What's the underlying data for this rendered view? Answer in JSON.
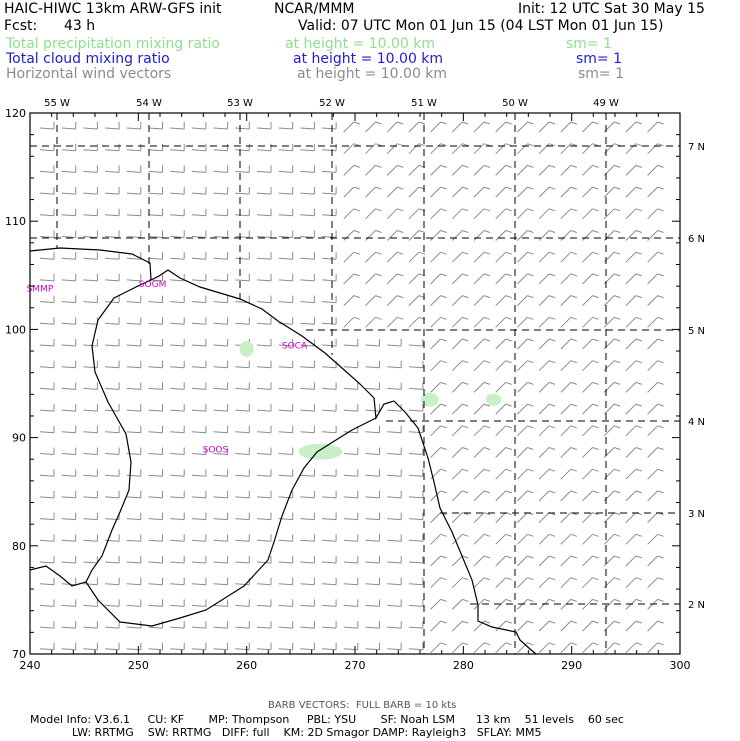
{
  "header": {
    "model_title": "HAIC-HIWC 13km ARW-GFS init",
    "org": "NCAR/MMM",
    "init": "Init: 12 UTC Sat 30 May 15",
    "fcst_label": "Fcst:",
    "fcst_value": "43 h",
    "valid": "Valid: 07 UTC Mon 01 Jun 15 (04 LST Mon 01 Jun 15)",
    "fields": [
      {
        "name": "Total precipitation mixing ratio",
        "height": "at height = 10.00 km",
        "sm": "sm= 1",
        "color": "#8ee08e"
      },
      {
        "name": "Total cloud mixing ratio",
        "height": "at height = 10.00 km",
        "sm": "sm= 1",
        "color": "#1e1ecc"
      },
      {
        "name": "Horizontal wind vectors",
        "height": "at height = 10.00 km",
        "sm": "sm= 1",
        "color": "#8c8c8c"
      }
    ]
  },
  "chart_data": {
    "type": "map",
    "x_ticks": [
      "240",
      "250",
      "260",
      "270",
      "280",
      "290",
      "300"
    ],
    "y_ticks": [
      "70",
      "80",
      "90",
      "100",
      "110",
      "120"
    ],
    "xlim": [
      240,
      300
    ],
    "ylim": [
      70,
      120
    ],
    "lon_labels": [
      "55 W",
      "54 W",
      "53 W",
      "52 W",
      "51 W",
      "50 W",
      "49 W"
    ],
    "lat_labels": [
      "7 N",
      "6 N",
      "5 N",
      "4 N",
      "3 N",
      "2 N"
    ],
    "stations": [
      {
        "id": "SMMP",
        "x": 241.1,
        "y": 103.8
      },
      {
        "id": "SOGM",
        "x": 251.5,
        "y": 104.2
      },
      {
        "id": "SOCA",
        "x": 264.6,
        "y": 98.5
      },
      {
        "id": "SOOS",
        "x": 257.3,
        "y": 88.9
      }
    ],
    "precip_blobs": [
      {
        "x": 260.0,
        "y": 98.2
      },
      {
        "x": 266.8,
        "y": 88.7
      },
      {
        "x": 276.9,
        "y": 93.5
      },
      {
        "x": 282.8,
        "y": 93.5
      }
    ],
    "wind_note": "BARB VECTORS:  FULL BARB = 10 kts",
    "colors": {
      "coast": "#000000",
      "grid": "#000000",
      "barb": "#8c8c8c",
      "station": "#cc00cc",
      "precip": "#c8f0c8"
    }
  },
  "footer": {
    "line1": "Model Info: V3.6.1     CU: KF       MP: Thompson     PBL: YSU       SF: Noah LSM      13 km    51 levels    60 sec",
    "line2": "LW: RRTMG    SW: RRTMG   DIFF: full    KM: 2D Smagor DAMP: Rayleigh3   SFLAY: MM5"
  }
}
